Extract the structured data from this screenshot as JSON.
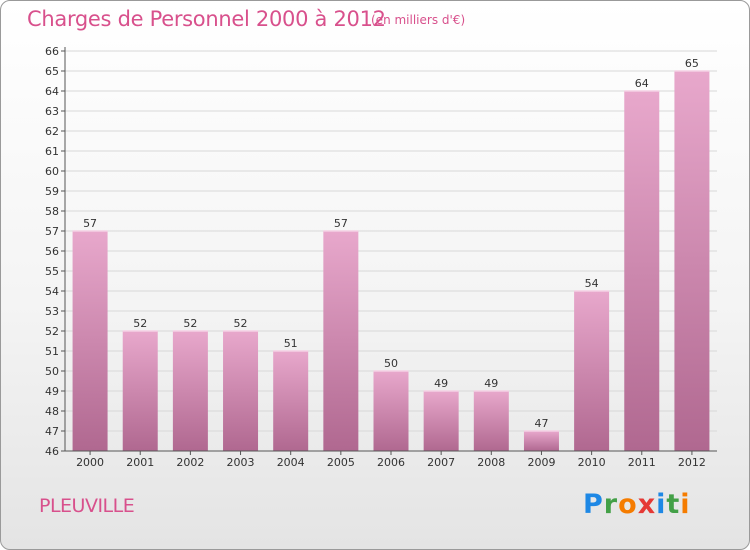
{
  "header": {
    "title": "Charges de Personnel 2000 à 2012",
    "subtitle": "(en milliers d'€)"
  },
  "footer": {
    "commune": "PLEUVILLE",
    "logo_text": "Proxiti"
  },
  "colors": {
    "bar_top": "#e8a8cc",
    "bar_bottom": "#b06890",
    "text_accent": "#d8508c"
  },
  "chart_data": {
    "type": "bar",
    "categories": [
      "2000",
      "2001",
      "2002",
      "2003",
      "2004",
      "2005",
      "2006",
      "2007",
      "2008",
      "2009",
      "2010",
      "2011",
      "2012"
    ],
    "values": [
      57,
      52,
      52,
      52,
      51,
      57,
      50,
      49,
      49,
      47,
      54,
      64,
      65
    ],
    "ylim": [
      46,
      66
    ],
    "yticks": [
      46,
      47,
      48,
      49,
      50,
      51,
      52,
      53,
      54,
      55,
      56,
      57,
      58,
      59,
      60,
      61,
      62,
      63,
      64,
      65,
      66
    ],
    "grid": true,
    "data_labels": true
  }
}
